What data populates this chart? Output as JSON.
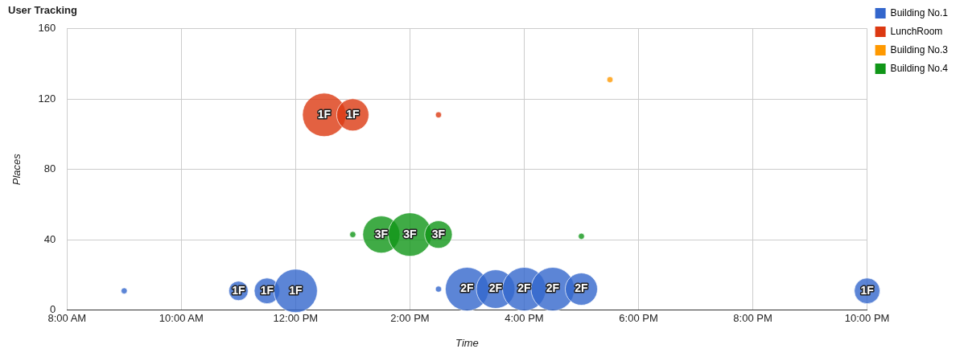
{
  "chart_data": {
    "type": "bubble",
    "title": "User Tracking",
    "xlabel": "Time",
    "ylabel": "Places",
    "xlim": [
      8,
      22
    ],
    "xticks": [
      {
        "value": 8,
        "label": "8:00 AM"
      },
      {
        "value": 10,
        "label": "10:00 AM"
      },
      {
        "value": 12,
        "label": "12:00 PM"
      },
      {
        "value": 14,
        "label": "2:00 PM"
      },
      {
        "value": 16,
        "label": "4:00 PM"
      },
      {
        "value": 18,
        "label": "6:00 PM"
      },
      {
        "value": 20,
        "label": "8:00 PM"
      },
      {
        "value": 22,
        "label": "10:00 PM"
      }
    ],
    "ylim": [
      0,
      160
    ],
    "yticks": [
      0,
      40,
      80,
      120,
      160
    ],
    "grid": true,
    "legend": "top right",
    "series": [
      {
        "name": "Building No.1",
        "color": "#3366cc",
        "x": [
          9,
          11,
          11.5,
          12,
          14.5,
          15,
          15.5,
          16,
          16.5,
          17,
          22
        ],
        "values": [
          11,
          11,
          11,
          11,
          12,
          12,
          12,
          12,
          12,
          12,
          11
        ],
        "sizes": [
          0.02,
          0.2,
          0.35,
          1,
          0.02,
          1,
          0.79,
          1,
          1,
          0.55,
          0.35
        ]
      },
      {
        "name": "LunchRoom",
        "color": "#dc3912",
        "x": [
          12.5,
          13,
          14.5
        ],
        "values": [
          111,
          111,
          111
        ],
        "sizes": [
          1,
          0.55,
          0.02
        ]
      },
      {
        "name": "Building No.3",
        "color": "#ff9900",
        "x": [
          17.5
        ],
        "values": [
          131
        ],
        "sizes": [
          0.02
        ]
      },
      {
        "name": "Building No.4",
        "color": "#109618",
        "x": [
          13,
          13.5,
          14,
          14.5,
          17
        ],
        "values": [
          43,
          43,
          43,
          43,
          42
        ],
        "sizes": [
          0.02,
          0.73,
          1,
          0.4,
          0.02
        ]
      }
    ],
    "annotations": [
      {
        "text": "1F",
        "x": 11,
        "y": 11
      },
      {
        "text": "1F",
        "x": 11.5,
        "y": 11
      },
      {
        "text": "1F",
        "x": 12,
        "y": 11
      },
      {
        "text": "1F",
        "x": 22,
        "y": 11
      },
      {
        "text": "2F",
        "x": 15,
        "y": 12
      },
      {
        "text": "2F",
        "x": 15.5,
        "y": 12
      },
      {
        "text": "2F",
        "x": 16,
        "y": 12
      },
      {
        "text": "2F",
        "x": 16.5,
        "y": 12
      },
      {
        "text": "2F",
        "x": 17,
        "y": 12
      },
      {
        "text": "1F",
        "x": 12.5,
        "y": 111
      },
      {
        "text": "1F",
        "x": 13,
        "y": 111
      },
      {
        "text": "3F",
        "x": 13.5,
        "y": 43
      },
      {
        "text": "3F",
        "x": 14,
        "y": 43
      },
      {
        "text": "3F",
        "x": 14.5,
        "y": 43
      }
    ]
  }
}
